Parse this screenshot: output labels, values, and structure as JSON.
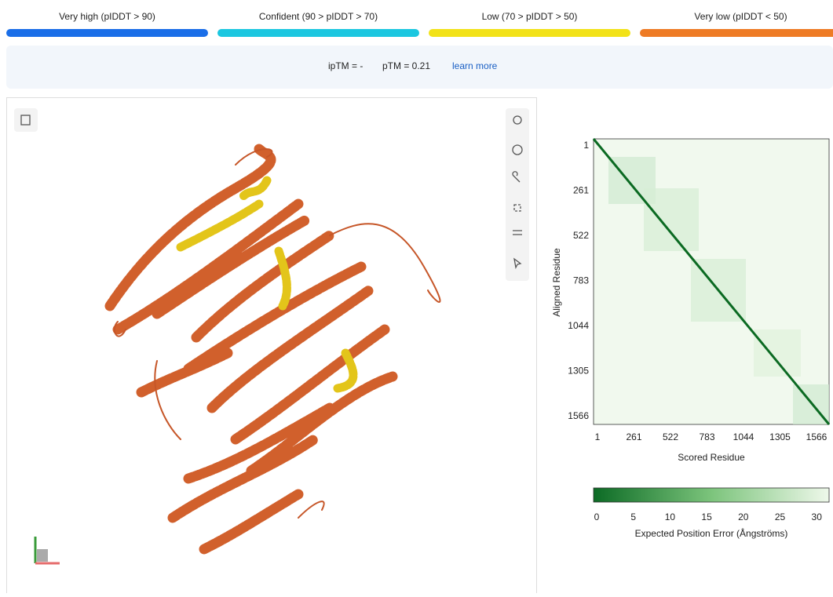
{
  "legend": [
    {
      "label": "Very high (pIDDT > 90)",
      "color": "#1a6ee8"
    },
    {
      "label": "Confident (90 > pIDDT > 70)",
      "color": "#1bc7e0"
    },
    {
      "label": "Low (70 > pIDDT > 50)",
      "color": "#f2e218"
    },
    {
      "label": "Very low (pIDDT < 50)",
      "color": "#ee7b25"
    }
  ],
  "metrics": {
    "iptm": "ipTM = -",
    "ptm": "pTM = 0.21",
    "link": "learn more"
  },
  "pae": {
    "ticks": [
      1,
      261,
      522,
      783,
      1044,
      1305,
      1566
    ],
    "x_label": "Scored Residue",
    "y_label": "Aligned Residue",
    "colorbar_ticks": [
      0,
      5,
      10,
      15,
      20,
      25,
      30
    ],
    "colorbar_label": "Expected Position Error (Ångströms)"
  }
}
